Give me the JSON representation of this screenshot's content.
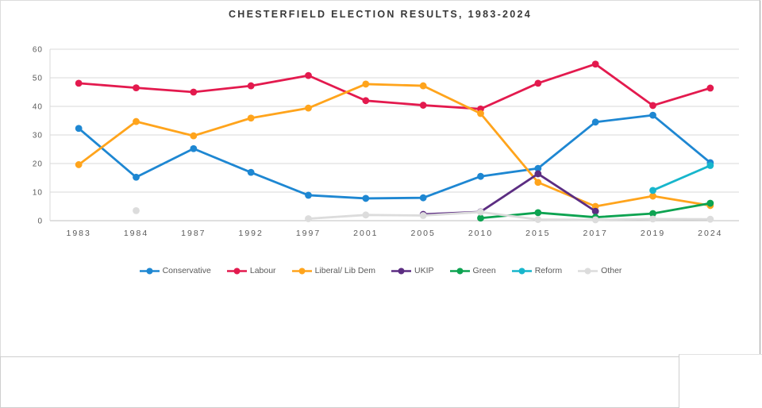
{
  "title": "CHESTERFIELD ELECTION RESULTS, 1983-2024",
  "chart_data": {
    "type": "line",
    "title": "CHESTERFIELD ELECTION RESULTS, 1983-2024",
    "xlabel": "",
    "ylabel": "",
    "categories": [
      "1983",
      "1984",
      "1987",
      "1992",
      "1997",
      "2001",
      "2005",
      "2010",
      "2015",
      "2017",
      "2019",
      "2024"
    ],
    "ylim": [
      0,
      60
    ],
    "yticks": [
      0,
      10,
      20,
      30,
      40,
      50,
      60
    ],
    "grid": true,
    "legend_position": "bottom",
    "gridline_color": "#d9d9d9",
    "axis_line_color": "#bfbfbf",
    "tick_label_color": "#595959",
    "series": [
      {
        "name": "Conservative",
        "color": "#1e87d2",
        "values": [
          32.3,
          15.2,
          25.2,
          16.9,
          8.9,
          7.8,
          8.0,
          15.5,
          18.3,
          34.5,
          36.9,
          20.3
        ]
      },
      {
        "name": "Labour",
        "color": "#e31a4e",
        "values": [
          48.1,
          46.5,
          45.0,
          47.2,
          50.8,
          42.0,
          40.4,
          39.1,
          48.1,
          54.8,
          40.3,
          46.4
        ]
      },
      {
        "name": "Liberal/ Lib Dem",
        "color": "#ffa41c",
        "values": [
          19.6,
          34.7,
          29.7,
          35.9,
          39.4,
          47.8,
          47.2,
          37.5,
          13.4,
          5.0,
          8.6,
          5.3
        ]
      },
      {
        "name": "UKIP",
        "color": "#5c2d82",
        "values": [
          null,
          null,
          null,
          null,
          null,
          null,
          2.2,
          3.1,
          16.4,
          3.3,
          null,
          null
        ]
      },
      {
        "name": "Green",
        "color": "#0da351",
        "values": [
          null,
          null,
          null,
          null,
          null,
          null,
          null,
          0.9,
          2.8,
          1.2,
          2.5,
          6.1
        ]
      },
      {
        "name": "Reform",
        "color": "#17b6cc",
        "values": [
          null,
          null,
          null,
          null,
          null,
          null,
          null,
          null,
          null,
          null,
          10.6,
          19.3
        ]
      },
      {
        "name": "Other",
        "color": "#dcdcdc",
        "values": [
          null,
          3.5,
          null,
          null,
          0.7,
          2.0,
          1.8,
          3.0,
          0.4,
          0.3,
          0.6,
          0.5
        ]
      }
    ]
  }
}
